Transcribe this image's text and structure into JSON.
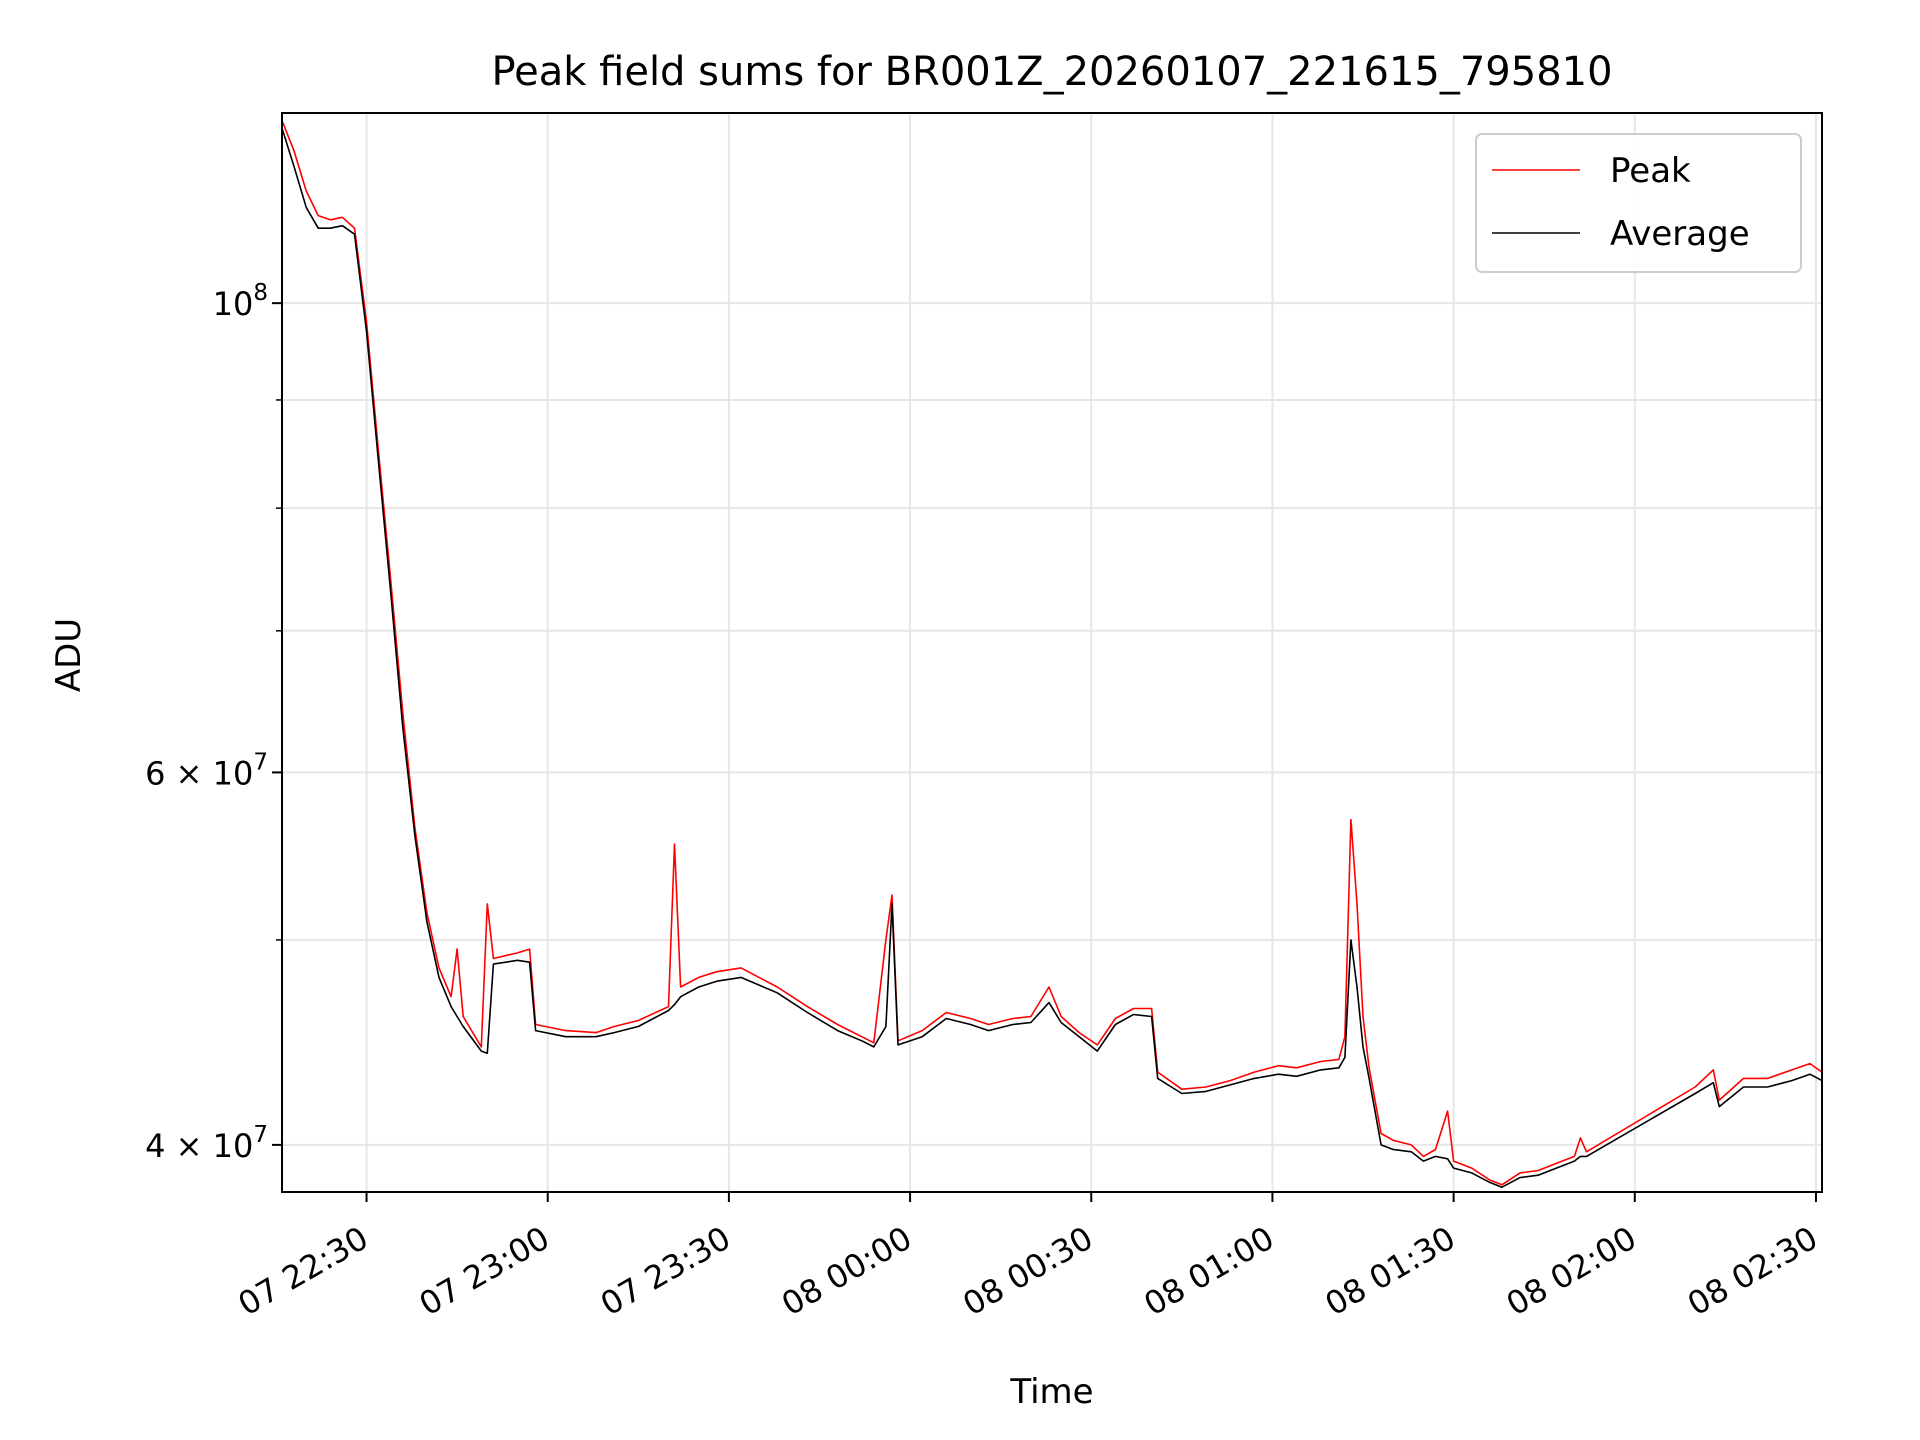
{
  "chart_data": {
    "type": "line",
    "title": "Peak field sums for BR001Z_20260107_221615_795810",
    "xlabel": "Time",
    "ylabel": "ADU",
    "x_axis": {
      "type": "time",
      "range": [
        "2026-01-07 22:16",
        "2026-01-08 02:31"
      ]
    },
    "y_axis": {
      "scale": "log",
      "range": [
        38000000,
        123000000
      ]
    },
    "x_ticks": [
      {
        "value": "2026-01-07 22:30",
        "label": "07 22:30"
      },
      {
        "value": "2026-01-07 23:00",
        "label": "07 23:00"
      },
      {
        "value": "2026-01-07 23:30",
        "label": "07 23:30"
      },
      {
        "value": "2026-01-08 00:00",
        "label": "08 00:00"
      },
      {
        "value": "2026-01-08 00:30",
        "label": "08 00:30"
      },
      {
        "value": "2026-01-08 01:00",
        "label": "08 01:00"
      },
      {
        "value": "2026-01-08 01:30",
        "label": "08 01:30"
      },
      {
        "value": "2026-01-08 02:00",
        "label": "08 02:00"
      },
      {
        "value": "2026-01-08 02:30",
        "label": "08 02:30"
      }
    ],
    "y_ticks_major": [
      {
        "value": 100000000,
        "base": "10",
        "exp": "8"
      },
      {
        "value": 60000000,
        "base": "6 × 10",
        "exp": "7"
      },
      {
        "value": 40000000,
        "base": "4 × 10",
        "exp": "7"
      }
    ],
    "y_ticks_minor": [
      50000000,
      70000000,
      80000000,
      90000000
    ],
    "grid": true,
    "legend": {
      "position": "upper right"
    },
    "series": [
      {
        "name": "Peak",
        "color": "#ff0000",
        "points": [
          [
            "2026-01-07 22:16",
            122000000
          ],
          [
            "2026-01-07 22:18",
            118000000
          ],
          [
            "2026-01-07 22:20",
            113000000
          ],
          [
            "2026-01-07 22:22",
            110000000
          ],
          [
            "2026-01-07 22:24",
            109500000
          ],
          [
            "2026-01-07 22:26",
            109800000
          ],
          [
            "2026-01-07 22:28",
            108500000
          ],
          [
            "2026-01-07 22:30",
            98000000
          ],
          [
            "2026-01-07 22:32",
            85000000
          ],
          [
            "2026-01-07 22:34",
            74000000
          ],
          [
            "2026-01-07 22:36",
            64000000
          ],
          [
            "2026-01-07 22:38",
            56500000
          ],
          [
            "2026-01-07 22:40",
            51500000
          ],
          [
            "2026-01-07 22:42",
            48500000
          ],
          [
            "2026-01-07 22:44",
            47000000
          ],
          [
            "2026-01-07 22:45",
            49500000
          ],
          [
            "2026-01-07 22:46",
            46000000
          ],
          [
            "2026-01-07 22:49",
            44500000
          ],
          [
            "2026-01-07 22:50",
            52000000
          ],
          [
            "2026-01-07 22:51",
            49000000
          ],
          [
            "2026-01-07 22:55",
            49300000
          ],
          [
            "2026-01-07 22:57",
            49500000
          ],
          [
            "2026-01-07 22:58",
            45600000
          ],
          [
            "2026-01-07 23:03",
            45300000
          ],
          [
            "2026-01-07 23:08",
            45200000
          ],
          [
            "2026-01-07 23:11",
            45500000
          ],
          [
            "2026-01-07 23:15",
            45800000
          ],
          [
            "2026-01-07 23:20",
            46500000
          ],
          [
            "2026-01-07 23:21",
            55500000
          ],
          [
            "2026-01-07 23:22",
            47500000
          ],
          [
            "2026-01-07 23:25",
            48000000
          ],
          [
            "2026-01-07 23:28",
            48300000
          ],
          [
            "2026-01-07 23:32",
            48500000
          ],
          [
            "2026-01-07 23:38",
            47500000
          ],
          [
            "2026-01-07 23:43",
            46500000
          ],
          [
            "2026-01-07 23:48",
            45600000
          ],
          [
            "2026-01-07 23:52",
            45000000
          ],
          [
            "2026-01-07 23:54",
            44700000
          ],
          [
            "2026-01-07 23:56",
            50000000
          ],
          [
            "2026-01-07 23:57",
            52500000
          ],
          [
            "2026-01-07 23:58",
            44800000
          ],
          [
            "2026-01-08 00:02",
            45300000
          ],
          [
            "2026-01-08 00:06",
            46200000
          ],
          [
            "2026-01-08 00:10",
            45900000
          ],
          [
            "2026-01-08 00:13",
            45600000
          ],
          [
            "2026-01-08 00:17",
            45900000
          ],
          [
            "2026-01-08 00:20",
            46000000
          ],
          [
            "2026-01-08 00:23",
            47500000
          ],
          [
            "2026-01-08 00:25",
            46000000
          ],
          [
            "2026-01-08 00:28",
            45200000
          ],
          [
            "2026-01-08 00:31",
            44600000
          ],
          [
            "2026-01-08 00:34",
            45900000
          ],
          [
            "2026-01-08 00:37",
            46400000
          ],
          [
            "2026-01-08 00:40",
            46400000
          ],
          [
            "2026-01-08 00:41",
            43300000
          ],
          [
            "2026-01-08 00:45",
            42500000
          ],
          [
            "2026-01-08 00:49",
            42600000
          ],
          [
            "2026-01-08 00:53",
            42900000
          ],
          [
            "2026-01-08 00:57",
            43300000
          ],
          [
            "2026-01-08 01:01",
            43600000
          ],
          [
            "2026-01-08 01:04",
            43500000
          ],
          [
            "2026-01-08 01:08",
            43800000
          ],
          [
            "2026-01-08 01:11",
            43900000
          ],
          [
            "2026-01-08 01:12",
            45000000
          ],
          [
            "2026-01-08 01:13",
            57000000
          ],
          [
            "2026-01-08 01:14",
            52000000
          ],
          [
            "2026-01-08 01:15",
            46000000
          ],
          [
            "2026-01-08 01:16",
            43500000
          ],
          [
            "2026-01-08 01:18",
            40500000
          ],
          [
            "2026-01-08 01:20",
            40200000
          ],
          [
            "2026-01-08 01:23",
            40000000
          ],
          [
            "2026-01-08 01:25",
            39500000
          ],
          [
            "2026-01-08 01:27",
            39800000
          ],
          [
            "2026-01-08 01:29",
            41500000
          ],
          [
            "2026-01-08 01:30",
            39300000
          ],
          [
            "2026-01-08 01:33",
            39000000
          ],
          [
            "2026-01-08 01:36",
            38500000
          ],
          [
            "2026-01-08 01:38",
            38300000
          ],
          [
            "2026-01-08 01:41",
            38800000
          ],
          [
            "2026-01-08 01:44",
            38900000
          ],
          [
            "2026-01-08 01:47",
            39200000
          ],
          [
            "2026-01-08 01:50",
            39500000
          ],
          [
            "2026-01-08 01:51",
            40300000
          ],
          [
            "2026-01-08 01:52",
            39700000
          ],
          [
            "2026-01-08 02:10",
            42600000
          ],
          [
            "2026-01-08 02:13",
            43400000
          ],
          [
            "2026-01-08 02:14",
            42000000
          ],
          [
            "2026-01-08 02:18",
            43000000
          ],
          [
            "2026-01-08 02:22",
            43000000
          ],
          [
            "2026-01-08 02:26",
            43400000
          ],
          [
            "2026-01-08 02:29",
            43700000
          ],
          [
            "2026-01-08 02:31",
            43300000
          ]
        ]
      },
      {
        "name": "Average",
        "color": "#000000",
        "points": [
          [
            "2026-01-07 22:16",
            121000000
          ],
          [
            "2026-01-07 22:18",
            116000000
          ],
          [
            "2026-01-07 22:20",
            111000000
          ],
          [
            "2026-01-07 22:22",
            108500000
          ],
          [
            "2026-01-07 22:24",
            108500000
          ],
          [
            "2026-01-07 22:26",
            108800000
          ],
          [
            "2026-01-07 22:28",
            107800000
          ],
          [
            "2026-01-07 22:30",
            97000000
          ],
          [
            "2026-01-07 22:32",
            84000000
          ],
          [
            "2026-01-07 22:34",
            73000000
          ],
          [
            "2026-01-07 22:36",
            63000000
          ],
          [
            "2026-01-07 22:38",
            56000000
          ],
          [
            "2026-01-07 22:40",
            51000000
          ],
          [
            "2026-01-07 22:42",
            48000000
          ],
          [
            "2026-01-07 22:44",
            46500000
          ],
          [
            "2026-01-07 22:45",
            46000000
          ],
          [
            "2026-01-07 22:46",
            45500000
          ],
          [
            "2026-01-07 22:49",
            44300000
          ],
          [
            "2026-01-07 22:50",
            44200000
          ],
          [
            "2026-01-07 22:51",
            48700000
          ],
          [
            "2026-01-07 22:55",
            48900000
          ],
          [
            "2026-01-07 22:57",
            48800000
          ],
          [
            "2026-01-07 22:58",
            45300000
          ],
          [
            "2026-01-07 23:03",
            45000000
          ],
          [
            "2026-01-07 23:08",
            45000000
          ],
          [
            "2026-01-07 23:11",
            45200000
          ],
          [
            "2026-01-07 23:15",
            45500000
          ],
          [
            "2026-01-07 23:20",
            46300000
          ],
          [
            "2026-01-07 23:21",
            46600000
          ],
          [
            "2026-01-07 23:22",
            47000000
          ],
          [
            "2026-01-07 23:25",
            47500000
          ],
          [
            "2026-01-07 23:28",
            47800000
          ],
          [
            "2026-01-07 23:32",
            48000000
          ],
          [
            "2026-01-07 23:38",
            47200000
          ],
          [
            "2026-01-07 23:43",
            46200000
          ],
          [
            "2026-01-07 23:48",
            45300000
          ],
          [
            "2026-01-07 23:52",
            44800000
          ],
          [
            "2026-01-07 23:54",
            44500000
          ],
          [
            "2026-01-07 23:56",
            45500000
          ],
          [
            "2026-01-07 23:57",
            52000000
          ],
          [
            "2026-01-07 23:58",
            44600000
          ],
          [
            "2026-01-08 00:02",
            45000000
          ],
          [
            "2026-01-08 00:06",
            45900000
          ],
          [
            "2026-01-08 00:10",
            45600000
          ],
          [
            "2026-01-08 00:13",
            45300000
          ],
          [
            "2026-01-08 00:17",
            45600000
          ],
          [
            "2026-01-08 00:20",
            45700000
          ],
          [
            "2026-01-08 00:23",
            46700000
          ],
          [
            "2026-01-08 00:25",
            45700000
          ],
          [
            "2026-01-08 00:28",
            45000000
          ],
          [
            "2026-01-08 00:31",
            44300000
          ],
          [
            "2026-01-08 00:34",
            45600000
          ],
          [
            "2026-01-08 00:37",
            46100000
          ],
          [
            "2026-01-08 00:40",
            46000000
          ],
          [
            "2026-01-08 00:41",
            43000000
          ],
          [
            "2026-01-08 00:45",
            42300000
          ],
          [
            "2026-01-08 00:49",
            42400000
          ],
          [
            "2026-01-08 00:53",
            42700000
          ],
          [
            "2026-01-08 00:57",
            43000000
          ],
          [
            "2026-01-08 01:01",
            43200000
          ],
          [
            "2026-01-08 01:04",
            43100000
          ],
          [
            "2026-01-08 01:08",
            43400000
          ],
          [
            "2026-01-08 01:11",
            43500000
          ],
          [
            "2026-01-08 01:12",
            44000000
          ],
          [
            "2026-01-08 01:13",
            50000000
          ],
          [
            "2026-01-08 01:14",
            47500000
          ],
          [
            "2026-01-08 01:15",
            44500000
          ],
          [
            "2026-01-08 01:16",
            43000000
          ],
          [
            "2026-01-08 01:18",
            40000000
          ],
          [
            "2026-01-08 01:20",
            39800000
          ],
          [
            "2026-01-08 01:23",
            39700000
          ],
          [
            "2026-01-08 01:25",
            39300000
          ],
          [
            "2026-01-08 01:27",
            39500000
          ],
          [
            "2026-01-08 01:29",
            39400000
          ],
          [
            "2026-01-08 01:30",
            39000000
          ],
          [
            "2026-01-08 01:33",
            38800000
          ],
          [
            "2026-01-08 01:36",
            38400000
          ],
          [
            "2026-01-08 01:38",
            38200000
          ],
          [
            "2026-01-08 01:41",
            38600000
          ],
          [
            "2026-01-08 01:44",
            38700000
          ],
          [
            "2026-01-08 01:47",
            39000000
          ],
          [
            "2026-01-08 01:50",
            39300000
          ],
          [
            "2026-01-08 01:51",
            39500000
          ],
          [
            "2026-01-08 01:52",
            39500000
          ],
          [
            "2026-01-08 02:10",
            42300000
          ],
          [
            "2026-01-08 02:13",
            42800000
          ],
          [
            "2026-01-08 02:14",
            41700000
          ],
          [
            "2026-01-08 02:18",
            42600000
          ],
          [
            "2026-01-08 02:22",
            42600000
          ],
          [
            "2026-01-08 02:26",
            42900000
          ],
          [
            "2026-01-08 02:29",
            43200000
          ],
          [
            "2026-01-08 02:31",
            42900000
          ]
        ]
      }
    ]
  }
}
